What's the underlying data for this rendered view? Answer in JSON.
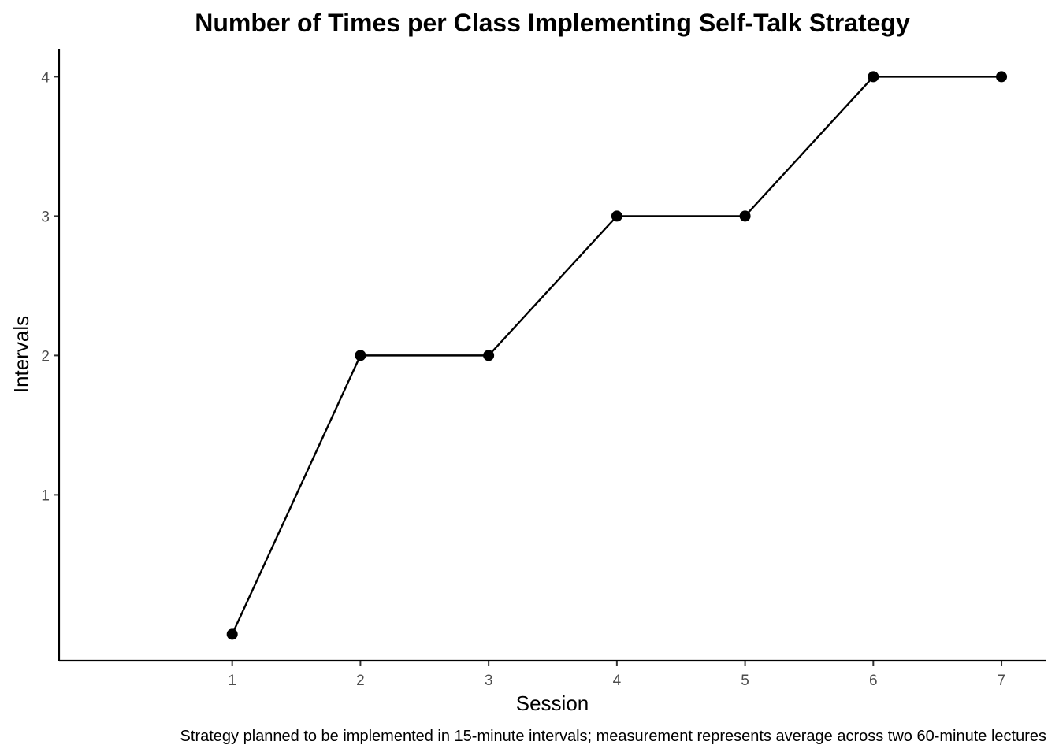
{
  "chart_data": {
    "type": "line",
    "title": "Number of Times per Class Implementing Self-Talk Strategy",
    "xlabel": "Session",
    "ylabel": "Intervals",
    "caption": "Strategy planned to be implemented in 15-minute intervals; measurement represents average across two 60-minute lectures",
    "x": [
      1,
      2,
      3,
      4,
      5,
      6,
      7
    ],
    "y": [
      0,
      2,
      2,
      3,
      3,
      4,
      4
    ],
    "x_ticks": [
      1,
      2,
      3,
      4,
      5,
      6,
      7
    ],
    "y_ticks": [
      1,
      2,
      3,
      4
    ],
    "xlim": [
      -0.35,
      7.35
    ],
    "ylim": [
      -0.19,
      4.2
    ],
    "grid": false,
    "legend": "none",
    "colors": {
      "line": "#000000",
      "points": "#000000",
      "axis": "#000000",
      "tick_labels": "#4d4d4d"
    }
  }
}
